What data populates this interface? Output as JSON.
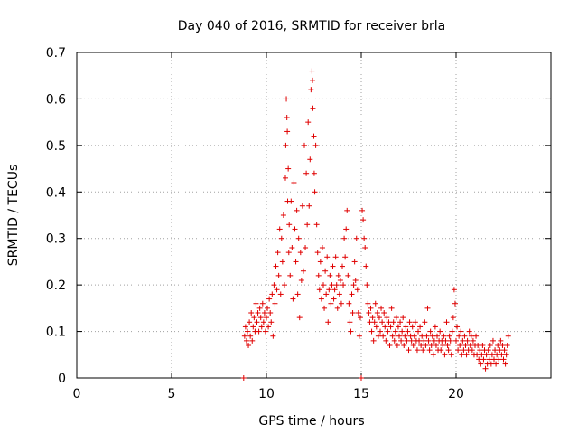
{
  "chart_data": {
    "type": "scatter",
    "title": "Day 040 of 2016, SRMTID for receiver brla",
    "xlabel": "GPS time / hours",
    "ylabel": "SRMTID / TECUs",
    "xlim": [
      0,
      25
    ],
    "ylim": [
      0,
      0.7
    ],
    "xticks": [
      "0",
      "5",
      "10",
      "15",
      "20"
    ],
    "xtick_values": [
      0,
      5,
      10,
      15,
      20
    ],
    "yticks": [
      "0",
      "0.1",
      "0.2",
      "0.3",
      "0.4",
      "0.5",
      "0.6",
      "0.7"
    ],
    "ytick_values": [
      0,
      0.1,
      0.2,
      0.3,
      0.4,
      0.5,
      0.6,
      0.7
    ],
    "grid": true,
    "marker": "+",
    "series_color": "#e00000",
    "series": [
      {
        "name": "SRMTID",
        "points": [
          [
            8.8,
            0.0
          ],
          [
            8.85,
            0.09
          ],
          [
            8.9,
            0.11
          ],
          [
            8.95,
            0.08
          ],
          [
            9.0,
            0.1
          ],
          [
            9.05,
            0.07
          ],
          [
            9.1,
            0.12
          ],
          [
            9.15,
            0.09
          ],
          [
            9.2,
            0.14
          ],
          [
            9.25,
            0.08
          ],
          [
            9.3,
            0.11
          ],
          [
            9.35,
            0.13
          ],
          [
            9.4,
            0.1
          ],
          [
            9.45,
            0.16
          ],
          [
            9.5,
            0.12
          ],
          [
            9.55,
            0.14
          ],
          [
            9.6,
            0.1
          ],
          [
            9.65,
            0.15
          ],
          [
            9.7,
            0.13
          ],
          [
            9.75,
            0.11
          ],
          [
            9.8,
            0.16
          ],
          [
            9.85,
            0.12
          ],
          [
            9.9,
            0.14
          ],
          [
            9.95,
            0.1
          ],
          [
            10.0,
            0.13
          ],
          [
            10.05,
            0.15
          ],
          [
            10.1,
            0.11
          ],
          [
            10.15,
            0.17
          ],
          [
            10.2,
            0.14
          ],
          [
            10.25,
            0.12
          ],
          [
            10.3,
            0.18
          ],
          [
            10.35,
            0.09
          ],
          [
            10.4,
            0.2
          ],
          [
            10.45,
            0.16
          ],
          [
            10.5,
            0.24
          ],
          [
            10.55,
            0.19
          ],
          [
            10.6,
            0.27
          ],
          [
            10.65,
            0.22
          ],
          [
            10.7,
            0.32
          ],
          [
            10.75,
            0.18
          ],
          [
            10.8,
            0.3
          ],
          [
            10.85,
            0.25
          ],
          [
            10.9,
            0.35
          ],
          [
            10.95,
            0.2
          ],
          [
            11.0,
            0.43
          ],
          [
            11.02,
            0.5
          ],
          [
            11.05,
            0.6
          ],
          [
            11.08,
            0.56
          ],
          [
            11.1,
            0.53
          ],
          [
            11.12,
            0.38
          ],
          [
            11.15,
            0.45
          ],
          [
            11.18,
            0.27
          ],
          [
            11.2,
            0.33
          ],
          [
            11.25,
            0.22
          ],
          [
            11.3,
            0.38
          ],
          [
            11.35,
            0.28
          ],
          [
            11.4,
            0.17
          ],
          [
            11.45,
            0.42
          ],
          [
            11.5,
            0.32
          ],
          [
            11.55,
            0.25
          ],
          [
            11.6,
            0.36
          ],
          [
            11.65,
            0.18
          ],
          [
            11.7,
            0.3
          ],
          [
            11.75,
            0.13
          ],
          [
            11.8,
            0.27
          ],
          [
            11.85,
            0.21
          ],
          [
            11.9,
            0.37
          ],
          [
            11.95,
            0.23
          ],
          [
            12.0,
            0.5
          ],
          [
            12.05,
            0.28
          ],
          [
            12.1,
            0.44
          ],
          [
            12.15,
            0.33
          ],
          [
            12.2,
            0.55
          ],
          [
            12.25,
            0.37
          ],
          [
            12.3,
            0.47
          ],
          [
            12.35,
            0.62
          ],
          [
            12.4,
            0.66
          ],
          [
            12.43,
            0.64
          ],
          [
            12.45,
            0.58
          ],
          [
            12.5,
            0.52
          ],
          [
            12.52,
            0.44
          ],
          [
            12.55,
            0.4
          ],
          [
            12.6,
            0.5
          ],
          [
            12.65,
            0.33
          ],
          [
            12.7,
            0.27
          ],
          [
            12.75,
            0.22
          ],
          [
            12.8,
            0.19
          ],
          [
            12.85,
            0.25
          ],
          [
            12.9,
            0.17
          ],
          [
            12.95,
            0.28
          ],
          [
            13.0,
            0.2
          ],
          [
            13.05,
            0.15
          ],
          [
            13.1,
            0.23
          ],
          [
            13.15,
            0.18
          ],
          [
            13.2,
            0.26
          ],
          [
            13.25,
            0.12
          ],
          [
            13.3,
            0.19
          ],
          [
            13.35,
            0.22
          ],
          [
            13.4,
            0.16
          ],
          [
            13.45,
            0.2
          ],
          [
            13.5,
            0.24
          ],
          [
            13.55,
            0.17
          ],
          [
            13.6,
            0.19
          ],
          [
            13.65,
            0.26
          ],
          [
            13.7,
            0.2
          ],
          [
            13.75,
            0.15
          ],
          [
            13.8,
            0.22
          ],
          [
            13.85,
            0.18
          ],
          [
            13.9,
            0.21
          ],
          [
            13.95,
            0.16
          ],
          [
            14.0,
            0.24
          ],
          [
            14.05,
            0.2
          ],
          [
            14.1,
            0.3
          ],
          [
            14.15,
            0.26
          ],
          [
            14.2,
            0.32
          ],
          [
            14.25,
            0.36
          ],
          [
            14.3,
            0.22
          ],
          [
            14.35,
            0.16
          ],
          [
            14.4,
            0.12
          ],
          [
            14.45,
            0.1
          ],
          [
            14.5,
            0.18
          ],
          [
            14.55,
            0.14
          ],
          [
            14.6,
            0.2
          ],
          [
            14.65,
            0.25
          ],
          [
            14.7,
            0.21
          ],
          [
            14.75,
            0.3
          ],
          [
            14.8,
            0.19
          ],
          [
            14.85,
            0.14
          ],
          [
            14.9,
            0.09
          ],
          [
            14.95,
            0.13
          ],
          [
            15.0,
            0.0
          ],
          [
            15.05,
            0.36
          ],
          [
            15.1,
            0.34
          ],
          [
            15.15,
            0.3
          ],
          [
            15.2,
            0.28
          ],
          [
            15.25,
            0.24
          ],
          [
            15.3,
            0.2
          ],
          [
            15.35,
            0.16
          ],
          [
            15.4,
            0.14
          ],
          [
            15.45,
            0.12
          ],
          [
            15.5,
            0.15
          ],
          [
            15.55,
            0.1
          ],
          [
            15.6,
            0.13
          ],
          [
            15.65,
            0.08
          ],
          [
            15.7,
            0.12
          ],
          [
            15.75,
            0.16
          ],
          [
            15.8,
            0.11
          ],
          [
            15.85,
            0.14
          ],
          [
            15.9,
            0.09
          ],
          [
            15.95,
            0.13
          ],
          [
            16.0,
            0.1
          ],
          [
            16.05,
            0.15
          ],
          [
            16.1,
            0.12
          ],
          [
            16.15,
            0.09
          ],
          [
            16.2,
            0.14
          ],
          [
            16.25,
            0.11
          ],
          [
            16.3,
            0.08
          ],
          [
            16.35,
            0.13
          ],
          [
            16.4,
            0.1
          ],
          [
            16.45,
            0.12
          ],
          [
            16.5,
            0.07
          ],
          [
            16.55,
            0.11
          ],
          [
            16.6,
            0.15
          ],
          [
            16.65,
            0.09
          ],
          [
            16.7,
            0.12
          ],
          [
            16.75,
            0.08
          ],
          [
            16.8,
            0.1
          ],
          [
            16.85,
            0.13
          ],
          [
            16.9,
            0.07
          ],
          [
            16.95,
            0.11
          ],
          [
            17.0,
            0.09
          ],
          [
            17.05,
            0.12
          ],
          [
            17.1,
            0.08
          ],
          [
            17.15,
            0.1
          ],
          [
            17.2,
            0.13
          ],
          [
            17.25,
            0.07
          ],
          [
            17.3,
            0.09
          ],
          [
            17.35,
            0.11
          ],
          [
            17.4,
            0.08
          ],
          [
            17.45,
            0.1
          ],
          [
            17.5,
            0.06
          ],
          [
            17.55,
            0.12
          ],
          [
            17.6,
            0.09
          ],
          [
            17.65,
            0.08
          ],
          [
            17.7,
            0.11
          ],
          [
            17.75,
            0.07
          ],
          [
            17.8,
            0.09
          ],
          [
            17.85,
            0.12
          ],
          [
            17.9,
            0.08
          ],
          [
            17.95,
            0.06
          ],
          [
            18.0,
            0.1
          ],
          [
            18.05,
            0.08
          ],
          [
            18.1,
            0.11
          ],
          [
            18.15,
            0.07
          ],
          [
            18.2,
            0.09
          ],
          [
            18.25,
            0.06
          ],
          [
            18.3,
            0.08
          ],
          [
            18.35,
            0.12
          ],
          [
            18.4,
            0.07
          ],
          [
            18.45,
            0.09
          ],
          [
            18.5,
            0.15
          ],
          [
            18.55,
            0.08
          ],
          [
            18.6,
            0.06
          ],
          [
            18.65,
            0.1
          ],
          [
            18.7,
            0.07
          ],
          [
            18.75,
            0.09
          ],
          [
            18.8,
            0.05
          ],
          [
            18.85,
            0.08
          ],
          [
            18.9,
            0.11
          ],
          [
            18.95,
            0.07
          ],
          [
            19.0,
            0.09
          ],
          [
            19.05,
            0.06
          ],
          [
            19.1,
            0.08
          ],
          [
            19.15,
            0.1
          ],
          [
            19.2,
            0.06
          ],
          [
            19.25,
            0.08
          ],
          [
            19.3,
            0.07
          ],
          [
            19.35,
            0.09
          ],
          [
            19.4,
            0.05
          ],
          [
            19.45,
            0.08
          ],
          [
            19.5,
            0.12
          ],
          [
            19.55,
            0.07
          ],
          [
            19.6,
            0.06
          ],
          [
            19.65,
            0.09
          ],
          [
            19.7,
            0.08
          ],
          [
            19.75,
            0.05
          ],
          [
            19.8,
            0.1
          ],
          [
            19.85,
            0.13
          ],
          [
            19.9,
            0.19
          ],
          [
            19.95,
            0.16
          ],
          [
            20.0,
            0.08
          ],
          [
            20.05,
            0.11
          ],
          [
            20.1,
            0.06
          ],
          [
            20.15,
            0.09
          ],
          [
            20.2,
            0.07
          ],
          [
            20.25,
            0.1
          ],
          [
            20.3,
            0.05
          ],
          [
            20.35,
            0.08
          ],
          [
            20.4,
            0.06
          ],
          [
            20.45,
            0.09
          ],
          [
            20.5,
            0.07
          ],
          [
            20.55,
            0.05
          ],
          [
            20.6,
            0.08
          ],
          [
            20.65,
            0.06
          ],
          [
            20.7,
            0.1
          ],
          [
            20.75,
            0.07
          ],
          [
            20.8,
            0.09
          ],
          [
            20.85,
            0.06
          ],
          [
            20.9,
            0.08
          ],
          [
            20.95,
            0.05
          ],
          [
            21.0,
            0.07
          ],
          [
            21.05,
            0.09
          ],
          [
            21.1,
            0.05
          ],
          [
            21.15,
            0.07
          ],
          [
            21.2,
            0.04
          ],
          [
            21.25,
            0.06
          ],
          [
            21.3,
            0.03
          ],
          [
            21.35,
            0.05
          ],
          [
            21.4,
            0.07
          ],
          [
            21.45,
            0.04
          ],
          [
            21.5,
            0.06
          ],
          [
            21.55,
            0.02
          ],
          [
            21.6,
            0.05
          ],
          [
            21.65,
            0.03
          ],
          [
            21.7,
            0.06
          ],
          [
            21.75,
            0.04
          ],
          [
            21.8,
            0.07
          ],
          [
            21.85,
            0.03
          ],
          [
            21.9,
            0.05
          ],
          [
            21.95,
            0.08
          ],
          [
            22.0,
            0.04
          ],
          [
            22.05,
            0.06
          ],
          [
            22.1,
            0.03
          ],
          [
            22.15,
            0.05
          ],
          [
            22.2,
            0.07
          ],
          [
            22.25,
            0.04
          ],
          [
            22.3,
            0.06
          ],
          [
            22.35,
            0.08
          ],
          [
            22.4,
            0.05
          ],
          [
            22.45,
            0.07
          ],
          [
            22.5,
            0.04
          ],
          [
            22.55,
            0.06
          ],
          [
            22.6,
            0.03
          ],
          [
            22.65,
            0.05
          ],
          [
            22.7,
            0.07
          ],
          [
            22.75,
            0.09
          ]
        ]
      }
    ]
  }
}
